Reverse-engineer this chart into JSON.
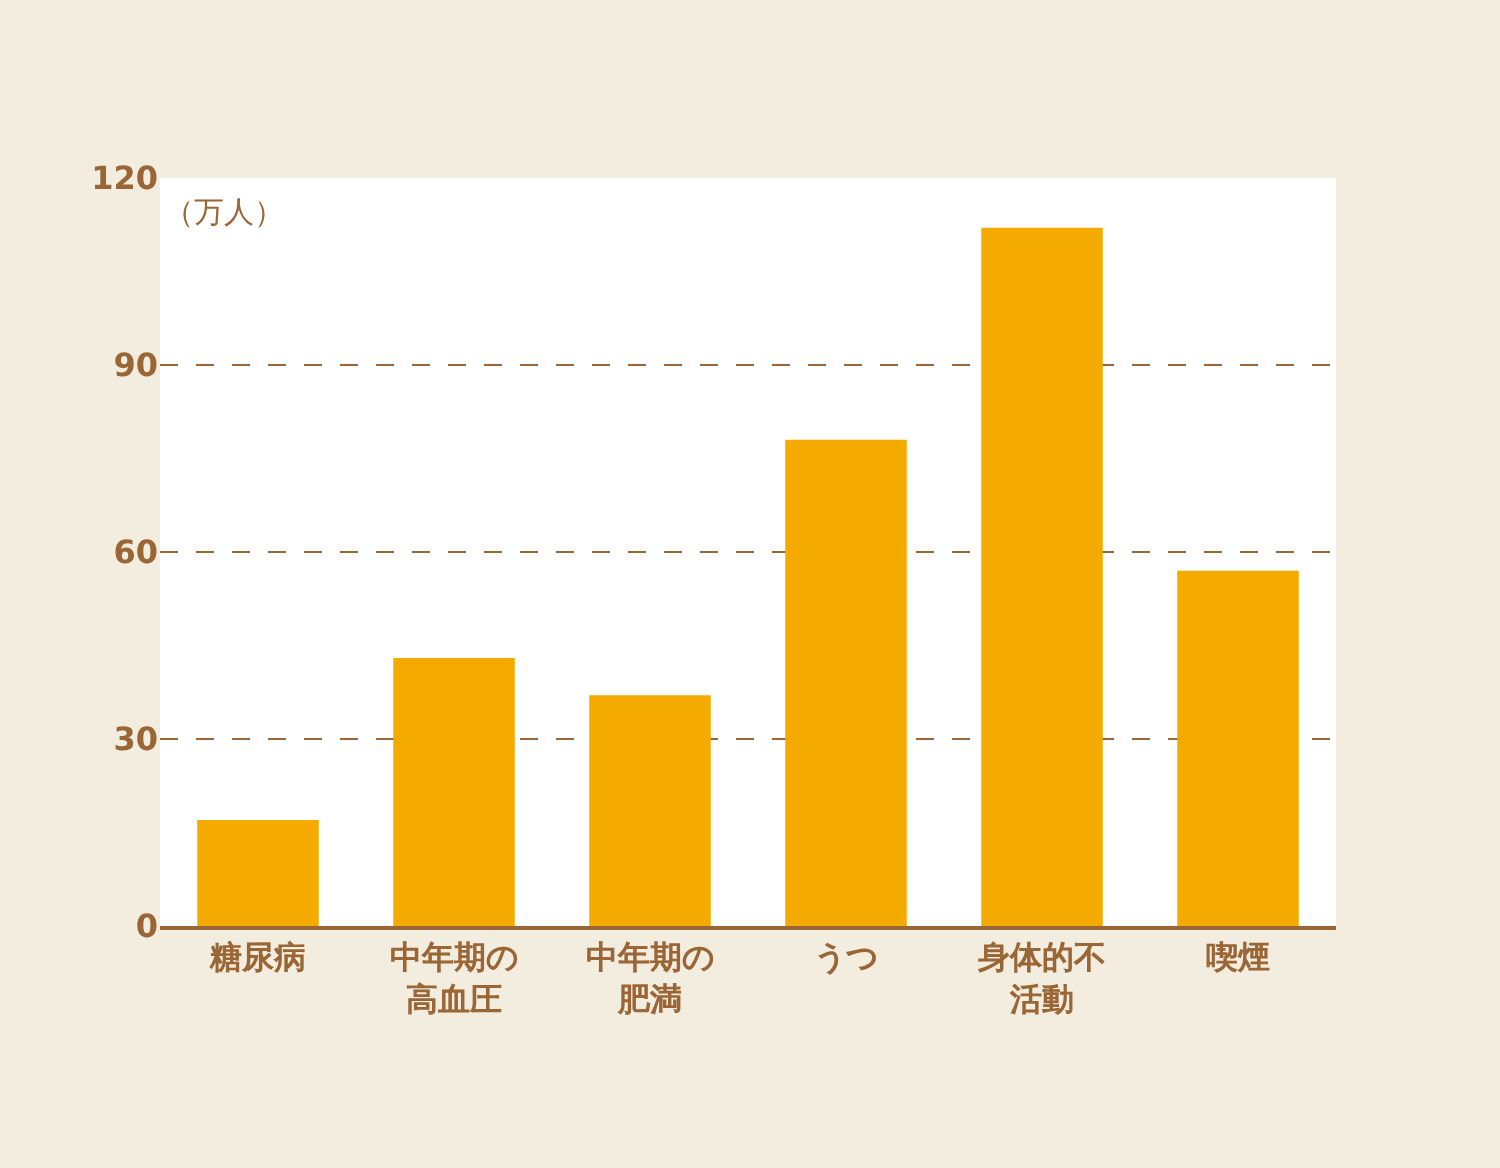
{
  "chart_data": {
    "type": "bar",
    "ylabel": "（万人）",
    "categories": [
      "糖尿病",
      "中年期の高血圧",
      "中年期の肥満",
      "うつ",
      "身体的不活動",
      "喫煙"
    ],
    "values": [
      17,
      43,
      37,
      78,
      112,
      57
    ],
    "color": "#f5aa00",
    "ylim": [
      0,
      120
    ],
    "yticks": [
      0,
      30,
      60,
      90,
      120
    ],
    "grid": "y"
  }
}
